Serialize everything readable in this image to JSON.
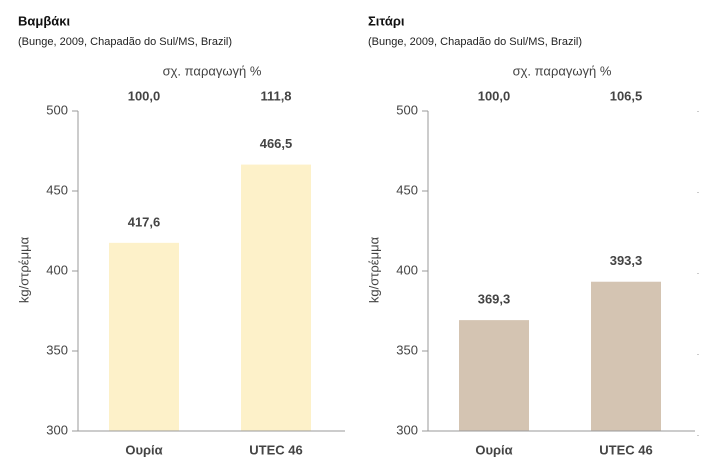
{
  "chart_data": [
    {
      "type": "bar",
      "title": "Βαμβάκι",
      "subtitle": "(Bunge, 2009, Chapadão do Sul/MS, Brazil)",
      "top_label": "σχ. παραγωγή %",
      "top_values": [
        100.0,
        111.8
      ],
      "top_value_labels": [
        "100,0",
        "111,8"
      ],
      "categories": [
        "Ουρία",
        "UTEC 46"
      ],
      "values": [
        417.6,
        466.5
      ],
      "value_labels": [
        "417,6",
        "466,5"
      ],
      "ylabel": "kg/στρέμμα",
      "ylim": [
        300,
        500
      ],
      "yticks": [
        300,
        350,
        400,
        450,
        500
      ],
      "color": "#fdf1c9"
    },
    {
      "type": "bar",
      "title": "Σιτάρι",
      "subtitle": "(Bunge, 2009, Chapadão do Sul/MS, Brazil)",
      "top_label": "σχ. παραγωγή %",
      "top_values": [
        100.0,
        106.5
      ],
      "top_value_labels": [
        "100,0",
        "106,5"
      ],
      "categories": [
        "Ουρία",
        "UTEC 46"
      ],
      "values": [
        369.3,
        393.3
      ],
      "value_labels": [
        "369,3",
        "393,3"
      ],
      "ylabel": "kg/στρέμμα",
      "ylim": [
        300,
        500
      ],
      "yticks": [
        300,
        350,
        400,
        450,
        500
      ],
      "color": "#d4c4b2"
    }
  ]
}
